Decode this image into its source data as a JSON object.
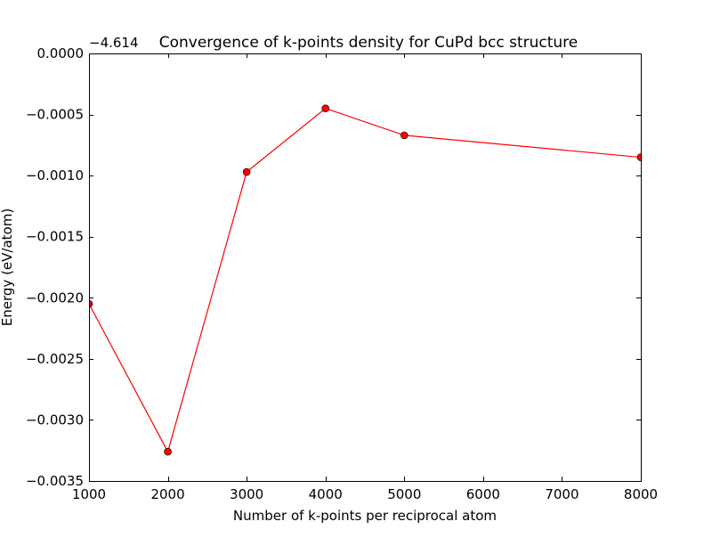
{
  "chart_data": {
    "type": "line",
    "title": "Convergence of k-points density for CuPd bcc structure",
    "xlabel": "Number of k-points per reciprocal atom",
    "ylabel": "Energy (eV/atom)",
    "offset_label": "−4.614",
    "xlim": [
      1000,
      8000
    ],
    "ylim": [
      -0.0035,
      0.0
    ],
    "x_ticks": [
      1000,
      2000,
      3000,
      4000,
      5000,
      6000,
      7000,
      8000
    ],
    "x_tick_labels": [
      "1000",
      "2000",
      "3000",
      "4000",
      "5000",
      "6000",
      "7000",
      "8000"
    ],
    "y_ticks": [
      0.0,
      -0.0005,
      -0.001,
      -0.0015,
      -0.002,
      -0.0025,
      -0.003,
      -0.0035
    ],
    "y_tick_labels": [
      "0.0000",
      "−0.0005",
      "−0.0010",
      "−0.0015",
      "−0.0020",
      "−0.0025",
      "−0.0030",
      "−0.0035"
    ],
    "grid": false,
    "series": [
      {
        "color": "#ff0000",
        "marker_color": "#ff0000",
        "x": [
          1000,
          2000,
          3000,
          4000,
          5000,
          8000
        ],
        "y": [
          -0.00205,
          -0.00326,
          -0.00097,
          -0.00045,
          -0.00067,
          -0.00085
        ]
      }
    ]
  }
}
